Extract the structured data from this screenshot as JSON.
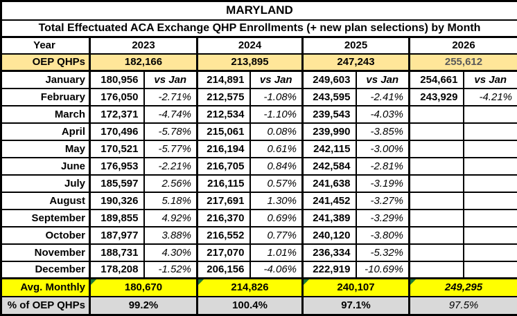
{
  "title": "MARYLAND",
  "subtitle": "Total Effectuated ACA Exchange QHP Enrollments (+ new plan selections) by Month",
  "colors": {
    "oep_row_bg": "#FFE699",
    "avg_row_bg": "#FFFF00",
    "pct_row_bg": "#D9D9D9",
    "future_text": "#595959",
    "border": "#000000",
    "triangle_green": "#1E7B34"
  },
  "header": {
    "year_label": "Year",
    "years": [
      "2023",
      "2024",
      "2025",
      "2026"
    ]
  },
  "oep_qhps": {
    "label": "OEP QHPs",
    "values": [
      "182,166",
      "213,895",
      "247,243",
      "255,612"
    ]
  },
  "months": [
    {
      "label": "January",
      "values": [
        "180,956",
        "214,891",
        "249,603",
        "254,661"
      ],
      "pcts": [
        "vs Jan",
        "vs Jan",
        "vs Jan",
        "vs Jan"
      ]
    },
    {
      "label": "February",
      "values": [
        "176,050",
        "212,575",
        "243,595",
        "243,929"
      ],
      "pcts": [
        "-2.71%",
        "-1.08%",
        "-2.41%",
        "-4.21%"
      ]
    },
    {
      "label": "March",
      "values": [
        "172,371",
        "212,534",
        "239,543",
        ""
      ],
      "pcts": [
        "-4.74%",
        "-1.10%",
        "-4.03%",
        ""
      ]
    },
    {
      "label": "April",
      "values": [
        "170,496",
        "215,061",
        "239,990",
        ""
      ],
      "pcts": [
        "-5.78%",
        "0.08%",
        "-3.85%",
        ""
      ]
    },
    {
      "label": "May",
      "values": [
        "170,521",
        "216,194",
        "242,115",
        ""
      ],
      "pcts": [
        "-5.77%",
        "0.61%",
        "-3.00%",
        ""
      ]
    },
    {
      "label": "June",
      "values": [
        "176,953",
        "216,705",
        "242,584",
        ""
      ],
      "pcts": [
        "-2.21%",
        "0.84%",
        "-2.81%",
        ""
      ]
    },
    {
      "label": "July",
      "values": [
        "185,597",
        "216,115",
        "241,638",
        ""
      ],
      "pcts": [
        "2.56%",
        "0.57%",
        "-3.19%",
        ""
      ]
    },
    {
      "label": "August",
      "values": [
        "190,326",
        "217,691",
        "241,452",
        ""
      ],
      "pcts": [
        "5.18%",
        "1.30%",
        "-3.27%",
        ""
      ]
    },
    {
      "label": "September",
      "values": [
        "189,855",
        "216,370",
        "241,389",
        ""
      ],
      "pcts": [
        "4.92%",
        "0.69%",
        "-3.29%",
        ""
      ]
    },
    {
      "label": "October",
      "values": [
        "187,977",
        "216,552",
        "240,120",
        ""
      ],
      "pcts": [
        "3.88%",
        "0.77%",
        "-3.80%",
        ""
      ]
    },
    {
      "label": "November",
      "values": [
        "188,731",
        "217,070",
        "236,334",
        ""
      ],
      "pcts": [
        "4.30%",
        "1.01%",
        "-5.32%",
        ""
      ]
    },
    {
      "label": "December",
      "values": [
        "178,208",
        "206,156",
        "222,919",
        ""
      ],
      "pcts": [
        "-1.52%",
        "-4.06%",
        "-10.69%",
        ""
      ]
    }
  ],
  "avg_monthly": {
    "label": "Avg. Monthly",
    "values": [
      "180,670",
      "214,826",
      "240,107",
      "249,295"
    ]
  },
  "pct_of_oep": {
    "label": "% of OEP QHPs",
    "values": [
      "99.2%",
      "100.4%",
      "97.1%",
      "97.5%"
    ]
  }
}
